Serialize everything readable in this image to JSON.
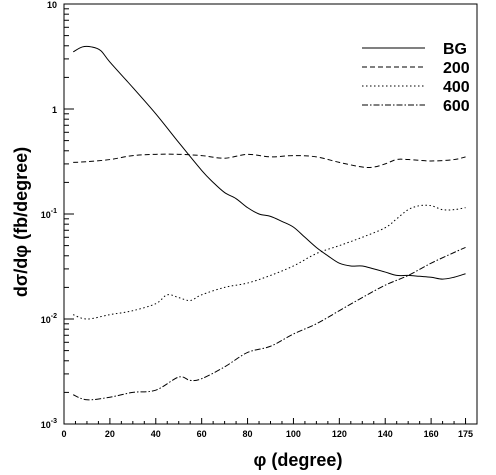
{
  "chart_data": {
    "type": "line",
    "title": "",
    "xlabel": "φ (degree)",
    "ylabel": "dσ/dφ (fb/degree)",
    "xlim": [
      0,
      180
    ],
    "ylim": [
      0.001,
      10
    ],
    "yscale": "log",
    "grid": false,
    "legend_position": "top-right",
    "x_ticks": [
      {
        "value": 0,
        "label": "0"
      },
      {
        "value": 20,
        "label": "20"
      },
      {
        "value": 40,
        "label": "40"
      },
      {
        "value": 60,
        "label": "60"
      },
      {
        "value": 80,
        "label": "80"
      },
      {
        "value": 100,
        "label": "100"
      },
      {
        "value": 120,
        "label": "120"
      },
      {
        "value": 140,
        "label": "140"
      },
      {
        "value": 160,
        "label": "160"
      },
      {
        "value": 175,
        "label": "175"
      }
    ],
    "y_ticks": [
      {
        "value": 0.001,
        "base": "10",
        "exp": "-3"
      },
      {
        "value": 0.01,
        "base": "10",
        "exp": "-2"
      },
      {
        "value": 0.1,
        "base": "10",
        "exp": "-1"
      },
      {
        "value": 1,
        "base": "1",
        "exp": ""
      },
      {
        "value": 10,
        "base": "10",
        "exp": ""
      }
    ],
    "series": [
      {
        "name": "BG",
        "dash": "",
        "x": [
          4,
          8,
          12,
          16,
          20,
          30,
          40,
          50,
          60,
          65,
          70,
          75,
          80,
          85,
          90,
          95,
          100,
          105,
          110,
          115,
          120,
          125,
          130,
          135,
          140,
          145,
          150,
          155,
          160,
          165,
          170,
          175
        ],
        "y": [
          3.5,
          3.9,
          3.9,
          3.6,
          2.8,
          1.6,
          0.9,
          0.48,
          0.26,
          0.2,
          0.16,
          0.14,
          0.115,
          0.1,
          0.095,
          0.085,
          0.075,
          0.06,
          0.048,
          0.04,
          0.034,
          0.032,
          0.032,
          0.03,
          0.028,
          0.026,
          0.026,
          0.0255,
          0.025,
          0.024,
          0.025,
          0.027
        ]
      },
      {
        "name": "200",
        "dash": "5 3",
        "x": [
          4,
          10,
          20,
          30,
          40,
          50,
          60,
          70,
          80,
          90,
          100,
          110,
          120,
          130,
          135,
          140,
          145,
          150,
          160,
          170,
          175
        ],
        "y": [
          0.31,
          0.315,
          0.33,
          0.36,
          0.37,
          0.37,
          0.36,
          0.34,
          0.37,
          0.35,
          0.36,
          0.35,
          0.31,
          0.28,
          0.28,
          0.3,
          0.33,
          0.33,
          0.32,
          0.33,
          0.35
        ]
      },
      {
        "name": "400",
        "dash": "1.5 2.5",
        "x": [
          4,
          10,
          20,
          30,
          40,
          45,
          50,
          55,
          60,
          70,
          80,
          90,
          100,
          110,
          120,
          130,
          140,
          145,
          150,
          155,
          160,
          165,
          170,
          175
        ],
        "y": [
          0.011,
          0.01,
          0.011,
          0.012,
          0.014,
          0.017,
          0.016,
          0.015,
          0.017,
          0.02,
          0.022,
          0.026,
          0.032,
          0.042,
          0.05,
          0.06,
          0.074,
          0.09,
          0.11,
          0.12,
          0.12,
          0.11,
          0.11,
          0.115
        ]
      },
      {
        "name": "600",
        "dash": "6 2 1.5 2",
        "x": [
          4,
          10,
          20,
          30,
          40,
          50,
          55,
          60,
          70,
          80,
          90,
          100,
          110,
          120,
          130,
          140,
          150,
          160,
          170,
          175
        ],
        "y": [
          0.0019,
          0.0017,
          0.0018,
          0.002,
          0.0021,
          0.0028,
          0.0026,
          0.0027,
          0.0035,
          0.0048,
          0.0055,
          0.0072,
          0.009,
          0.012,
          0.016,
          0.021,
          0.026,
          0.034,
          0.043,
          0.048
        ]
      }
    ]
  }
}
